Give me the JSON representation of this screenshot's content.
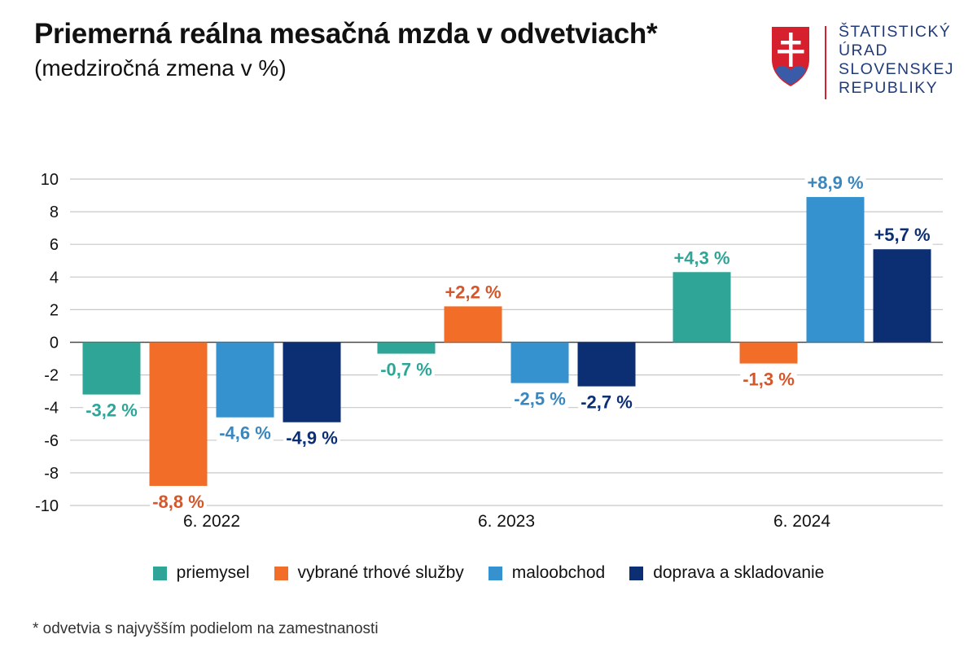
{
  "title": "Priemerná reálna mesačná mzda v odvetviach*",
  "subtitle": "(medziročná zmena v %)",
  "logo": {
    "lines": [
      "ŠTATISTICKÝ",
      "ÚRAD",
      "SLOVENSKEJ",
      "REPUBLIKY"
    ]
  },
  "footnote": "* odvetvia s najvyšším podielom na zamestnanosti",
  "colors": {
    "priemysel": "#2ea597",
    "sluzby": "#f26d28",
    "maloobchod": "#3592cf",
    "doprava": "#0c2f74",
    "grid": "#c8c8c8",
    "logo_red": "#d6202e",
    "logo_blue": "#223b7a"
  },
  "chart_data": {
    "type": "bar",
    "title": "Priemerná reálna mesačná mzda v odvetviach*",
    "subtitle": "(medziročná zmena v %)",
    "xlabel": "",
    "ylabel": "",
    "categories": [
      "6. 2022",
      "6. 2023",
      "6. 2024"
    ],
    "ylim": [
      -10,
      10
    ],
    "yticks": [
      10,
      8,
      6,
      4,
      2,
      0,
      -2,
      -4,
      -6,
      -8,
      -10
    ],
    "grid": true,
    "legend_position": "bottom",
    "series": [
      {
        "name": "priemysel",
        "color": "#2ea597",
        "label_color": "#2ea597",
        "values": [
          -3.2,
          -0.7,
          4.3
        ],
        "labels": [
          "-3,2 %",
          "-0,7 %",
          "+4,3 %"
        ]
      },
      {
        "name": "vybrané trhové služby",
        "color": "#f26d28",
        "label_color": "#d4562a",
        "values": [
          -8.8,
          2.2,
          -1.3
        ],
        "labels": [
          "-8,8 %",
          "+2,2 %",
          "-1,3 %"
        ]
      },
      {
        "name": "maloobchod",
        "color": "#3592cf",
        "label_color": "#3a86bd",
        "values": [
          -4.6,
          -2.5,
          8.9
        ],
        "labels": [
          "-4,6 %",
          "-2,5 %",
          "+8,9 %"
        ]
      },
      {
        "name": "doprava a skladovanie",
        "color": "#0c2f74",
        "label_color": "#0c2f74",
        "values": [
          -4.9,
          -2.7,
          5.7
        ],
        "labels": [
          "-4,9 %",
          "-2,7 %",
          "+5,7 %"
        ]
      }
    ]
  }
}
